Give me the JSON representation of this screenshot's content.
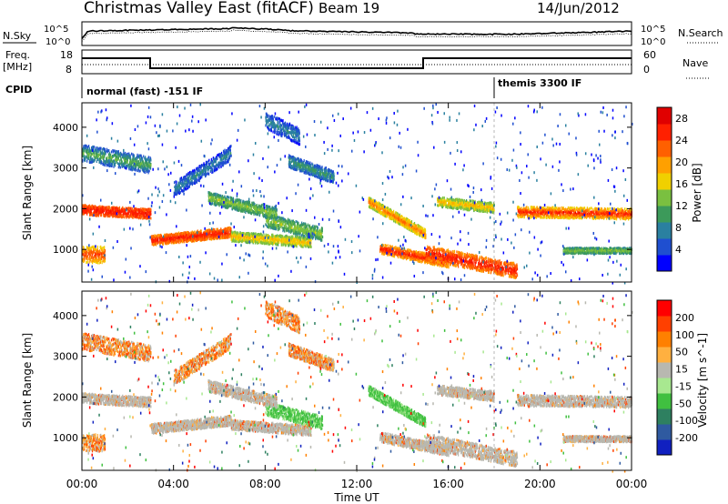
{
  "header": {
    "title": "Christmas Valley East (fitACF)",
    "beam": "Beam 19",
    "date": "14/Jun/2012"
  },
  "top_panel": {
    "left_label": "N.Sky",
    "right_label": "N.Search",
    "left_ticks": [
      "10^5",
      "10^0"
    ],
    "right_ticks": [
      "10^5",
      "10^0"
    ]
  },
  "freq_panel": {
    "left_label_1": "Freq.",
    "left_label_2": "[MHz]",
    "right_label": "Nave",
    "left_ticks": [
      "18",
      "8"
    ],
    "right_ticks": [
      "60",
      "0"
    ]
  },
  "cpid": {
    "label": "CPID",
    "segments": [
      {
        "start_hour": 0,
        "text": "normal (fast) -151 IF"
      },
      {
        "start_hour": 18,
        "text": "themis 3300 IF"
      }
    ]
  },
  "chart_data": [
    {
      "type": "heatmap",
      "name": "Power",
      "ylabel": "Slant Range [km]",
      "xlabel": "Time UT",
      "x_ticks": [
        "00:00",
        "04:00",
        "08:00",
        "12:00",
        "16:00",
        "20:00",
        "00:00"
      ],
      "xlim_hours": [
        0,
        24
      ],
      "y_ticks": [
        1000,
        2000,
        3000,
        4000
      ],
      "ylim": [
        200,
        4600
      ],
      "colorbar": {
        "label": "Power [dB]",
        "ticks": [
          "4",
          "8",
          "12",
          "16",
          "20",
          "24",
          "28"
        ],
        "range": [
          0,
          30
        ],
        "colors": [
          "#0000ff",
          "#1f4fd0",
          "#2a80a0",
          "#3c9a5a",
          "#7ac040",
          "#f0d000",
          "#ffa000",
          "#ff6000",
          "#ff2000",
          "#e00000"
        ]
      }
    },
    {
      "type": "heatmap",
      "name": "Velocity",
      "ylabel": "Slant Range [km]",
      "xlabel": "Time UT",
      "x_ticks": [
        "00:00",
        "04:00",
        "08:00",
        "12:00",
        "16:00",
        "20:00",
        "00:00"
      ],
      "xlim_hours": [
        0,
        24
      ],
      "y_ticks": [
        1000,
        2000,
        3000,
        4000
      ],
      "ylim": [
        200,
        4600
      ],
      "colorbar": {
        "label": "Velocity [m s^-1]",
        "ticks": [
          "200",
          "100",
          "50",
          "15",
          "-15",
          "-50",
          "-100",
          "-200"
        ],
        "colors": [
          "#1020c0",
          "#2f5aa0",
          "#2e8060",
          "#40c040",
          "#a8e890",
          "#b8b8b0",
          "#ffb040",
          "#ff8000",
          "#ff4000",
          "#ff0000"
        ]
      }
    }
  ],
  "colors": {
    "axis": "#000000",
    "ground_scatter": "#b8b8b0"
  }
}
